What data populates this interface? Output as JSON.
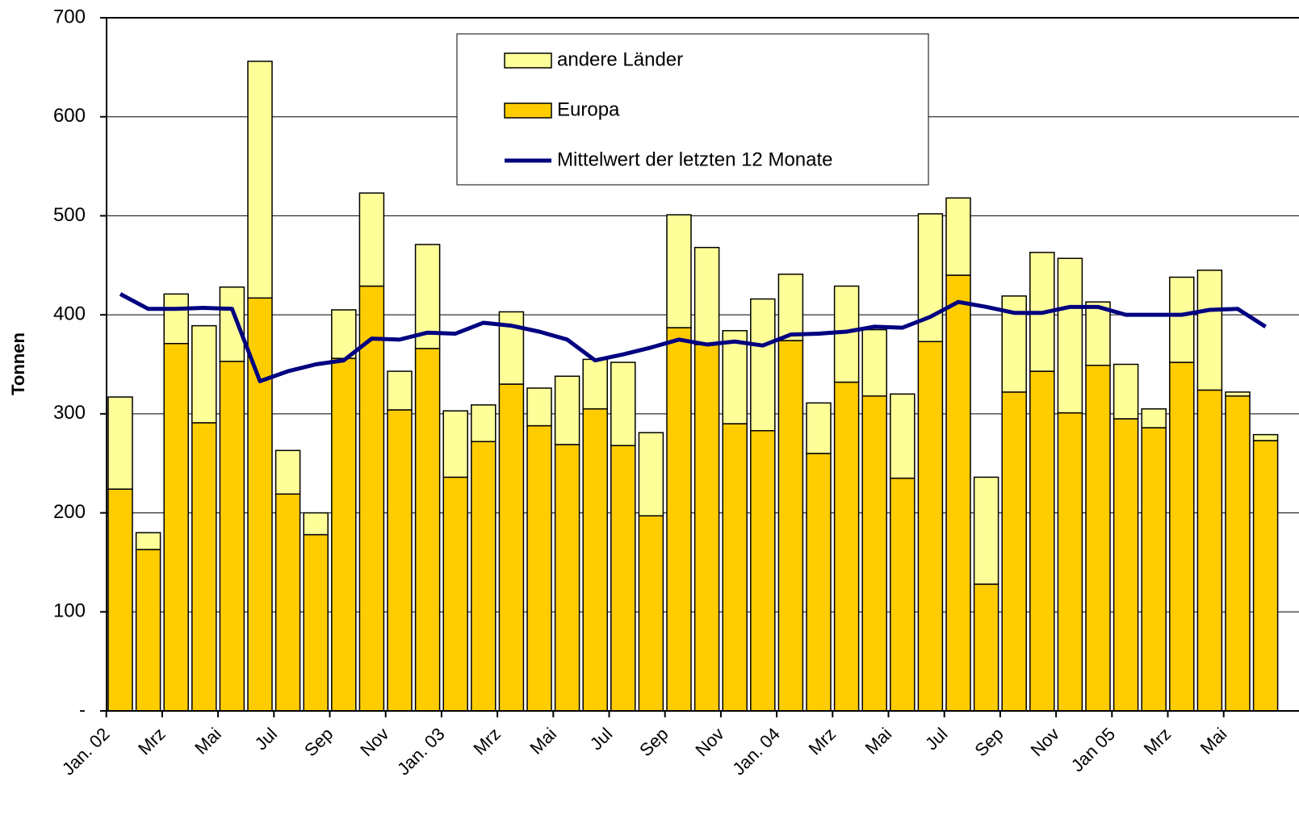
{
  "chart_data": {
    "type": "bar",
    "stacked": true,
    "y_label": "Tonnen",
    "categories": [
      "Jan. 02",
      null,
      "Mrz",
      null,
      "Mai",
      null,
      "Jul",
      null,
      "Sep",
      null,
      "Nov",
      null,
      "Jan. 03",
      null,
      "Mrz",
      null,
      "Mai",
      null,
      "Jul",
      null,
      "Sep",
      null,
      "Nov",
      null,
      "Jan. 04",
      null,
      "Mrz",
      null,
      "Mai",
      null,
      "Jul",
      null,
      "Sep",
      null,
      "Nov",
      null,
      "Jan 05",
      null,
      "Mrz",
      null,
      "Mai",
      null
    ],
    "series": [
      {
        "name": "Europa",
        "color": "#ffcc00",
        "values": [
          224,
          163,
          371,
          291,
          353,
          417,
          219,
          178,
          356,
          429,
          304,
          366,
          236,
          272,
          330,
          288,
          269,
          305,
          268,
          197,
          387,
          370,
          290,
          283,
          374,
          260,
          332,
          318,
          235,
          373,
          440,
          128,
          322,
          343,
          301,
          349,
          295,
          286,
          352,
          324,
          318,
          273
        ]
      },
      {
        "name": "andere Länder",
        "color": "#ffff99",
        "values": [
          93,
          17,
          50,
          98,
          75,
          239,
          44,
          22,
          49,
          94,
          39,
          105,
          67,
          37,
          73,
          38,
          69,
          50,
          84,
          84,
          114,
          98,
          94,
          133,
          67,
          51,
          97,
          67,
          85,
          129,
          78,
          108,
          97,
          120,
          156,
          64,
          55,
          19,
          86,
          121,
          4,
          6
        ]
      },
      {
        "name": "Mittelwert der letzten 12 Monate",
        "type": "line",
        "color": "#000080",
        "values": [
          421,
          406,
          406,
          407,
          406,
          333,
          343,
          350,
          354,
          376,
          375,
          382,
          381,
          392,
          389,
          383,
          375,
          354,
          360,
          367,
          375,
          370,
          373,
          369,
          380,
          381,
          383,
          388,
          387,
          398,
          413,
          408,
          402,
          402,
          408,
          408,
          400,
          400,
          400,
          405,
          406,
          388
        ]
      }
    ],
    "ylim": [
      0,
      700
    ],
    "yticks": [
      {
        "value": 0,
        "label": "-"
      },
      100,
      200,
      300,
      400,
      500,
      600,
      700
    ],
    "grid": true
  }
}
